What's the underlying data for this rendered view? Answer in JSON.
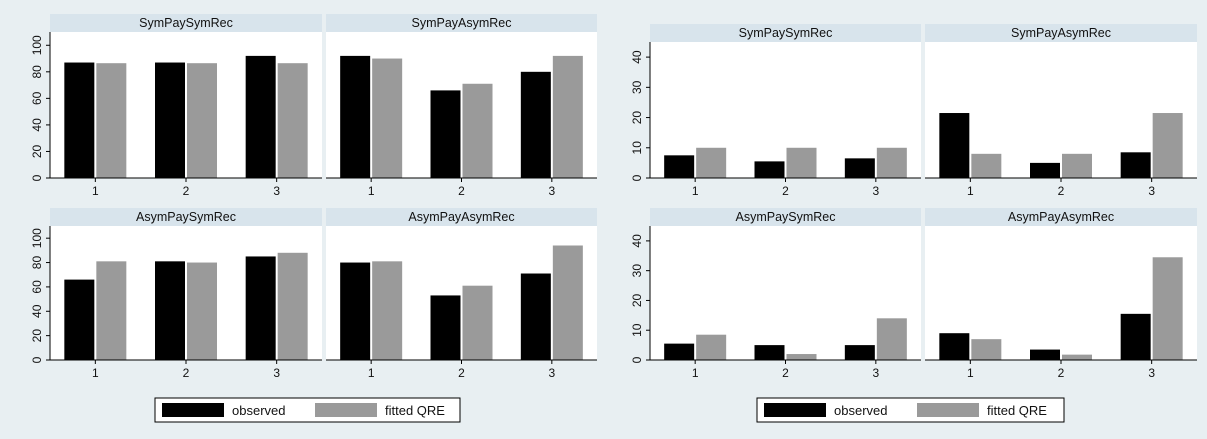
{
  "colors": {
    "background": "#e8eff2",
    "panel_bg": "#ffffff",
    "strip_bg": "#d8e4ec",
    "observed": "#000000",
    "fitted": "#9a9a9a"
  },
  "chart_data": [
    {
      "type": "bar",
      "facets": [
        {
          "title": "SymPaySymRec",
          "categories": [
            "1",
            "2",
            "3"
          ],
          "series": [
            {
              "name": "observed",
              "values": [
                87,
                87,
                92
              ]
            },
            {
              "name": "fitted QRE",
              "values": [
                86.5,
                86.5,
                86.5
              ]
            }
          ]
        },
        {
          "title": "SymPayAsymRec",
          "categories": [
            "1",
            "2",
            "3"
          ],
          "series": [
            {
              "name": "observed",
              "values": [
                92,
                66,
                80
              ]
            },
            {
              "name": "fitted QRE",
              "values": [
                90,
                71,
                92
              ]
            }
          ]
        },
        {
          "title": "AsymPaySymRec",
          "categories": [
            "1",
            "2",
            "3"
          ],
          "series": [
            {
              "name": "observed",
              "values": [
                66,
                81,
                85
              ]
            },
            {
              "name": "fitted QRE",
              "values": [
                81,
                80,
                88
              ]
            }
          ]
        },
        {
          "title": "AsymPayAsymRec",
          "categories": [
            "1",
            "2",
            "3"
          ],
          "series": [
            {
              "name": "observed",
              "values": [
                80,
                53,
                71
              ]
            },
            {
              "name": "fitted QRE",
              "values": [
                81,
                61,
                94
              ]
            }
          ]
        }
      ],
      "ylim": [
        0,
        110
      ],
      "yticks": [
        0,
        20,
        40,
        60,
        80,
        100
      ],
      "legend": {
        "position": "bottom",
        "entries": [
          "observed",
          "fitted QRE"
        ]
      }
    },
    {
      "type": "bar",
      "facets": [
        {
          "title": "SymPaySymRec",
          "categories": [
            "1",
            "2",
            "3"
          ],
          "series": [
            {
              "name": "observed",
              "values": [
                7.5,
                5.5,
                6.5
              ]
            },
            {
              "name": "fitted QRE",
              "values": [
                10,
                10,
                10
              ]
            }
          ]
        },
        {
          "title": "SymPayAsymRec",
          "categories": [
            "1",
            "2",
            "3"
          ],
          "series": [
            {
              "name": "observed",
              "values": [
                21.5,
                5,
                8.5
              ]
            },
            {
              "name": "fitted QRE",
              "values": [
                8,
                8,
                21.5
              ]
            }
          ]
        },
        {
          "title": "AsymPaySymRec",
          "categories": [
            "1",
            "2",
            "3"
          ],
          "series": [
            {
              "name": "observed",
              "values": [
                5.5,
                5,
                5
              ]
            },
            {
              "name": "fitted QRE",
              "values": [
                8.5,
                2,
                14
              ]
            }
          ]
        },
        {
          "title": "AsymPayAsymRec",
          "categories": [
            "1",
            "2",
            "3"
          ],
          "series": [
            {
              "name": "observed",
              "values": [
                9,
                3.5,
                15.5
              ]
            },
            {
              "name": "fitted QRE",
              "values": [
                7,
                1.8,
                34.5
              ]
            }
          ]
        }
      ],
      "ylim": [
        0,
        45
      ],
      "yticks": [
        0,
        10,
        20,
        30,
        40
      ],
      "legend": {
        "position": "bottom",
        "entries": [
          "observed",
          "fitted QRE"
        ]
      }
    }
  ]
}
